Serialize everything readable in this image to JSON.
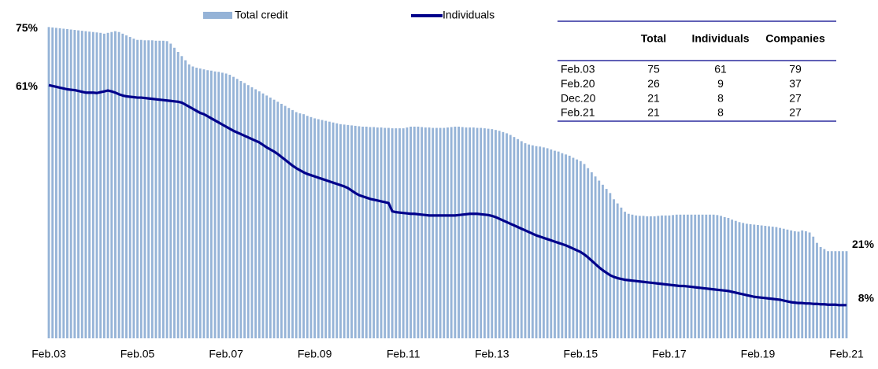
{
  "chart_data": {
    "type": "bar_line",
    "categories": [
      "Feb.03",
      null,
      null,
      null,
      null,
      null,
      null,
      null,
      null,
      null,
      null,
      null,
      null,
      null,
      null,
      null,
      null,
      null,
      null,
      null,
      null,
      null,
      null,
      null,
      "Feb.05",
      null,
      null,
      null,
      null,
      null,
      null,
      null,
      null,
      null,
      null,
      null,
      null,
      null,
      null,
      null,
      null,
      null,
      null,
      null,
      null,
      null,
      null,
      null,
      "Feb.07",
      null,
      null,
      null,
      null,
      null,
      null,
      null,
      null,
      null,
      null,
      null,
      null,
      null,
      null,
      null,
      null,
      null,
      null,
      null,
      null,
      null,
      null,
      null,
      "Feb.09",
      null,
      null,
      null,
      null,
      null,
      null,
      null,
      null,
      null,
      null,
      null,
      null,
      null,
      null,
      null,
      null,
      null,
      null,
      null,
      null,
      null,
      null,
      null,
      "Feb.11",
      null,
      null,
      null,
      null,
      null,
      null,
      null,
      null,
      null,
      null,
      null,
      null,
      null,
      null,
      null,
      null,
      null,
      null,
      null,
      null,
      null,
      null,
      null,
      "Feb.13",
      null,
      null,
      null,
      null,
      null,
      null,
      null,
      null,
      null,
      null,
      null,
      null,
      null,
      null,
      null,
      null,
      null,
      null,
      null,
      null,
      null,
      null,
      null,
      "Feb.15",
      null,
      null,
      null,
      null,
      null,
      null,
      null,
      null,
      null,
      null,
      null,
      null,
      null,
      null,
      null,
      null,
      null,
      null,
      null,
      null,
      null,
      null,
      null,
      "Feb.17",
      null,
      null,
      null,
      null,
      null,
      null,
      null,
      null,
      null,
      null,
      null,
      null,
      null,
      null,
      null,
      null,
      null,
      null,
      null,
      null,
      null,
      null,
      null,
      "Feb.19",
      null,
      null,
      null,
      null,
      null,
      null,
      null,
      null,
      null,
      null,
      null,
      null,
      null,
      null,
      null,
      null,
      null,
      null,
      null,
      null,
      null,
      null,
      null,
      "Feb.21"
    ],
    "series": [
      {
        "name": "Total credit",
        "kind": "bar",
        "color": "#95b3d7",
        "values": [
          75,
          74.9,
          74.8,
          74.7,
          74.6,
          74.5,
          74.4,
          74.3,
          74.2,
          74.1,
          74,
          73.9,
          73.8,
          73.7,
          73.6,
          73.4,
          73.6,
          73.8,
          74,
          73.8,
          73.4,
          73,
          72.6,
          72.2,
          71.9,
          71.9,
          71.8,
          71.8,
          71.8,
          71.7,
          71.7,
          71.7,
          71.6,
          71,
          70,
          69,
          68,
          67,
          66,
          65.5,
          65.2,
          65,
          64.8,
          64.6,
          64.5,
          64.3,
          64.2,
          64,
          63.8,
          63.5,
          63,
          62.5,
          62,
          61.5,
          61,
          60.5,
          60,
          59.5,
          59,
          58.5,
          58,
          57.5,
          57,
          56.5,
          56,
          55.5,
          55,
          54.5,
          54.2,
          54,
          53.6,
          53.3,
          53,
          52.8,
          52.6,
          52.4,
          52.2,
          52,
          51.8,
          51.6,
          51.5,
          51.4,
          51.3,
          51.2,
          51.1,
          51,
          51,
          50.9,
          50.9,
          50.8,
          50.8,
          50.7,
          50.7,
          50.6,
          50.6,
          50.6,
          50.6,
          50.8,
          51,
          51,
          51,
          50.9,
          50.8,
          50.8,
          50.7,
          50.7,
          50.7,
          50.7,
          50.8,
          50.9,
          51,
          51,
          50.9,
          50.8,
          50.8,
          50.8,
          50.7,
          50.7,
          50.6,
          50.5,
          50.4,
          50.2,
          50,
          49.7,
          49.4,
          49,
          48.5,
          48,
          47.5,
          47,
          46.7,
          46.5,
          46.3,
          46.2,
          46,
          45.8,
          45.5,
          45.2,
          45,
          44.6,
          44.3,
          44,
          43.5,
          43.1,
          42.7,
          42,
          41,
          40,
          39,
          38,
          37,
          36,
          35,
          33.5,
          32.5,
          31.5,
          30.5,
          30,
          29.8,
          29.6,
          29.5,
          29.5,
          29.4,
          29.4,
          29.4,
          29.5,
          29.6,
          29.6,
          29.6,
          29.7,
          29.8,
          29.8,
          29.8,
          29.8,
          29.8,
          29.8,
          29.8,
          29.8,
          29.8,
          29.8,
          29.8,
          29.7,
          29.5,
          29.2,
          29,
          28.6,
          28.3,
          28,
          27.8,
          27.6,
          27.5,
          27.4,
          27.3,
          27.2,
          27.1,
          27,
          26.9,
          26.8,
          26.6,
          26.4,
          26.2,
          26,
          25.8,
          25.7,
          26,
          25.8,
          25.5,
          24.5,
          23,
          22,
          21.5,
          21,
          21,
          21,
          21,
          21,
          21
        ]
      },
      {
        "name": "Individuals",
        "kind": "line",
        "color": "#00008b",
        "values": [
          61,
          60.8,
          60.6,
          60.4,
          60.2,
          60,
          59.9,
          59.8,
          59.6,
          59.4,
          59.2,
          59.2,
          59.2,
          59.1,
          59.3,
          59.5,
          59.7,
          59.5,
          59.2,
          58.8,
          58.5,
          58.3,
          58.2,
          58.1,
          58,
          58,
          57.9,
          57.8,
          57.7,
          57.6,
          57.5,
          57.4,
          57.3,
          57.2,
          57.1,
          57,
          56.8,
          56.3,
          55.8,
          55.3,
          54.8,
          54.3,
          54,
          53.5,
          53,
          52.5,
          52,
          51.5,
          51,
          50.5,
          50,
          49.6,
          49.2,
          48.8,
          48.4,
          48,
          47.6,
          47.2,
          46.6,
          46,
          45.5,
          45,
          44.4,
          43.7,
          43,
          42.3,
          41.6,
          41,
          40.5,
          40,
          39.6,
          39.3,
          39,
          38.7,
          38.4,
          38.1,
          37.8,
          37.5,
          37.2,
          36.9,
          36.6,
          36.2,
          35.6,
          35,
          34.5,
          34.2,
          33.9,
          33.6,
          33.4,
          33.2,
          33,
          32.8,
          32.6,
          30.6,
          30.4,
          30.3,
          30.2,
          30.1,
          30,
          30,
          29.9,
          29.8,
          29.7,
          29.6,
          29.6,
          29.6,
          29.6,
          29.6,
          29.6,
          29.6,
          29.6,
          29.7,
          29.8,
          29.9,
          30,
          30,
          30,
          29.9,
          29.8,
          29.7,
          29.5,
          29.2,
          28.8,
          28.4,
          28,
          27.6,
          27.2,
          26.8,
          26.4,
          26,
          25.6,
          25.2,
          24.8,
          24.5,
          24.2,
          23.9,
          23.6,
          23.3,
          23,
          22.7,
          22.4,
          22,
          21.6,
          21.2,
          20.8,
          20.2,
          19.5,
          18.7,
          17.9,
          17.1,
          16.4,
          15.8,
          15.2,
          14.8,
          14.5,
          14.3,
          14.1,
          14,
          13.9,
          13.8,
          13.7,
          13.6,
          13.5,
          13.4,
          13.3,
          13.2,
          13.1,
          13,
          12.9,
          12.8,
          12.7,
          12.6,
          12.6,
          12.5,
          12.4,
          12.3,
          12.2,
          12.1,
          12,
          11.9,
          11.8,
          11.7,
          11.6,
          11.5,
          11.4,
          11.2,
          11,
          10.8,
          10.6,
          10.4,
          10.2,
          10,
          9.9,
          9.8,
          9.7,
          9.6,
          9.5,
          9.4,
          9.3,
          9.1,
          8.9,
          8.7,
          8.6,
          8.5,
          8.5,
          8.4,
          8.4,
          8.3,
          8.3,
          8.2,
          8.2,
          8.1,
          8.1,
          8.1,
          8,
          8,
          8
        ]
      }
    ],
    "ylim": [
      0,
      80
    ],
    "legend": "top",
    "annotations": [
      {
        "text": "75%",
        "value": 75,
        "position": "start"
      },
      {
        "text": "61%",
        "value": 61,
        "position": "start"
      },
      {
        "text": "21%",
        "value": 21,
        "position": "end"
      },
      {
        "text": "8%",
        "value": 8,
        "position": "end"
      }
    ]
  },
  "table": {
    "columns": [
      "Total",
      "Individuals",
      "Companies"
    ],
    "rows": [
      [
        "Feb.03",
        75,
        61,
        79
      ],
      [
        "Feb.20",
        26,
        9,
        37
      ],
      [
        "Dec.20",
        21,
        8,
        27
      ],
      [
        "Feb.21",
        21,
        8,
        27
      ]
    ]
  }
}
